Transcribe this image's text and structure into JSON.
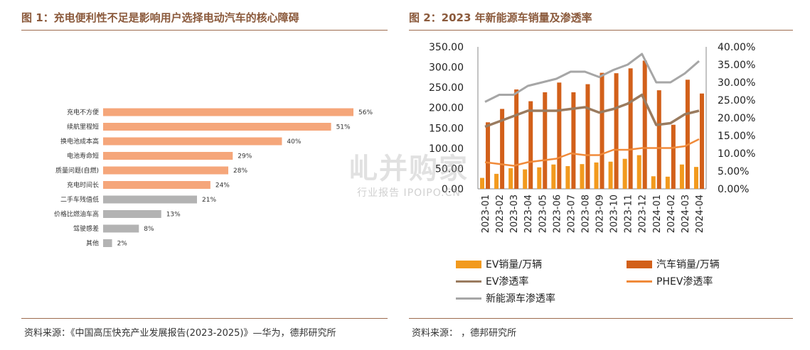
{
  "left": {
    "title": "图 1：充电便利性不足是影响用户选择电动汽车的核心障碍",
    "source": "资料来源：《中国高压快充产业发展报告(2023-2025)》—华为，德邦研究所"
  },
  "right": {
    "title": "图 2：2023 年新能源车销量及渗透率",
    "source": "资料来源：       ，德邦研究所"
  },
  "watermark": {
    "main": "乢并购家",
    "sub": "行业报告 IPOIPO.CN"
  },
  "colors": {
    "orange_bar": "#f5a67a",
    "gray_bar": "#b3b3b3",
    "ev_sales": "#f29a1e",
    "auto_sales": "#d2601a",
    "ev_rate": "#9a7b5f",
    "phev_rate": "#f08a3a",
    "nev_rate": "#a6a6a6"
  },
  "chart_data": [
    {
      "type": "bar",
      "orientation": "horizontal",
      "categories": [
        "充电不方便",
        "续航里程短",
        "换电池成本高",
        "电池寿命短",
        "质量问题(自燃)",
        "充电时间长",
        "二手车残值低",
        "价格比燃油车高",
        "驾驶感差",
        "其他"
      ],
      "values": [
        56,
        51,
        40,
        29,
        28,
        24,
        21,
        13,
        8,
        2
      ],
      "labels": [
        "56%",
        "51%",
        "40%",
        "29%",
        "28%",
        "24%",
        "21%",
        "13%",
        "8%",
        "2%"
      ],
      "highlight_count": 6,
      "title": "",
      "xlabel": "",
      "ylabel": "",
      "grid": false
    },
    {
      "type": "bar",
      "categories": [
        "2023-01",
        "2023-02",
        "2023-03",
        "2023-04",
        "2023-05",
        "2023-06",
        "2023-07",
        "2023-08",
        "2023-09",
        "2023-10",
        "2023-11",
        "2023-12",
        "2024-01",
        "2024-02",
        "2024-03",
        "2024-04"
      ],
      "series": [
        {
          "name": "EV销量/万辆",
          "kind": "bar",
          "axis": "left",
          "values": [
            27,
            37,
            51,
            48,
            53,
            60,
            56,
            61,
            65,
            67,
            74,
            83,
            31,
            30,
            60,
            54
          ]
        },
        {
          "name": "汽车销量/万辆",
          "kind": "bar",
          "axis": "left",
          "values": [
            164,
            197,
            245,
            216,
            238,
            262,
            238,
            258,
            286,
            285,
            297,
            316,
            243,
            158,
            269,
            235
          ]
        },
        {
          "name": "EV渗透率",
          "kind": "line",
          "axis": "right",
          "values": [
            17.5,
            19.0,
            20.5,
            22.0,
            22.0,
            22.0,
            22.5,
            23.0,
            21.5,
            22.5,
            24.0,
            26.5,
            18.0,
            18.5,
            21.0,
            22.0
          ]
        },
        {
          "name": "PHEV渗透率",
          "kind": "line",
          "axis": "right",
          "values": [
            7.5,
            7.0,
            6.5,
            7.5,
            8.0,
            8.5,
            10.0,
            9.5,
            9.5,
            11.0,
            11.0,
            11.5,
            11.5,
            11.5,
            12.0,
            14.0
          ]
        },
        {
          "name": "新能源车渗透率",
          "kind": "line",
          "axis": "right",
          "values": [
            24.5,
            26.5,
            26.5,
            29.0,
            30.0,
            31.0,
            33.0,
            33.0,
            31.5,
            33.5,
            35.0,
            38.0,
            30.0,
            30.0,
            32.5,
            36.0
          ]
        }
      ],
      "yticks_left": [
        "0.00",
        "50.00",
        "100.00",
        "150.00",
        "200.00",
        "250.00",
        "300.00",
        "350.00"
      ],
      "yticks_right": [
        "0.00%",
        "5.00%",
        "10.00%",
        "15.00%",
        "20.00%",
        "25.00%",
        "30.00%",
        "35.00%",
        "40.00%"
      ],
      "ylim": [
        0,
        350
      ],
      "ylim_right": [
        0,
        40
      ],
      "title": "",
      "xlabel": "",
      "ylabel": "",
      "grid": false,
      "legend": "bottom"
    }
  ]
}
